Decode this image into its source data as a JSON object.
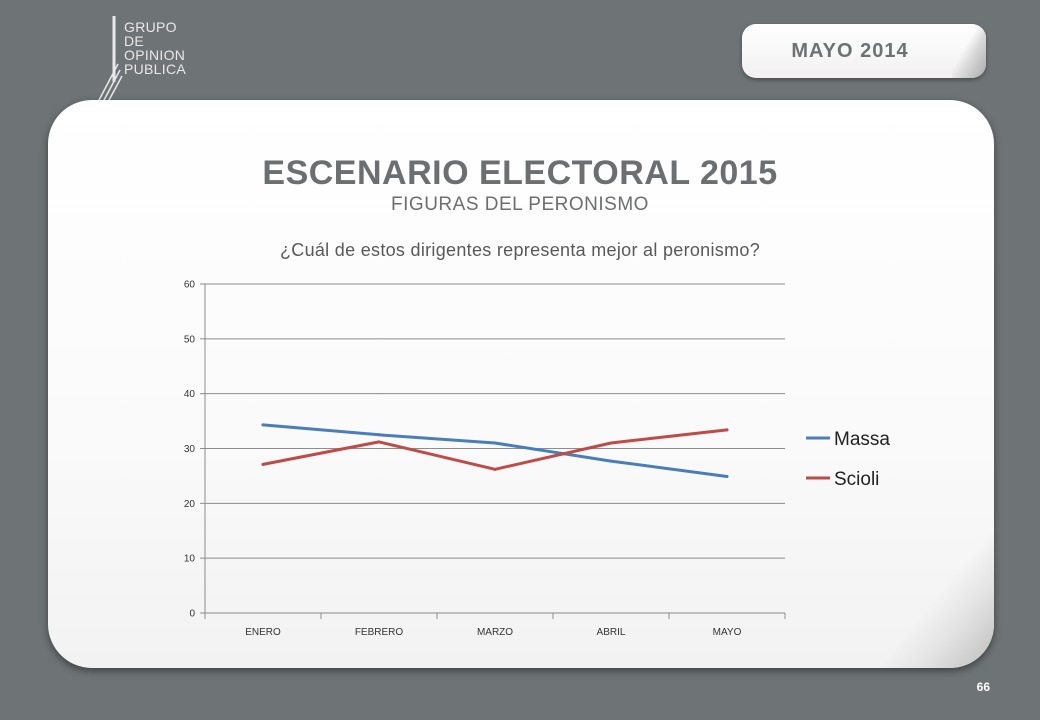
{
  "logo": {
    "lines": [
      "GRUPO",
      "DE",
      "OPINION",
      "PUBLICA"
    ]
  },
  "header": {
    "date_label": "MAYO  2014"
  },
  "slide": {
    "title": "ESCENARIO ELECTORAL 2015",
    "subtitle": "FIGURAS DEL PERONISMO",
    "question": "¿Cuál de estos dirigentes representa mejor al peronismo?"
  },
  "chart_data": {
    "type": "line",
    "title": "",
    "xlabel": "",
    "ylabel": "",
    "categories": [
      "ENERO",
      "FEBRERO",
      "MARZO",
      "ABRIL",
      "MAYO"
    ],
    "ylim": [
      0,
      60
    ],
    "yticks": [
      "0",
      "10",
      "20",
      "30",
      "40",
      "50",
      "60"
    ],
    "grid": true,
    "legend_position": "right",
    "series": [
      {
        "name": "Massa",
        "values": [
          34.3,
          32.5,
          31.0,
          27.7,
          24.9
        ],
        "color": "#4a7ebb"
      },
      {
        "name": "Scioli",
        "values": [
          27.1,
          31.2,
          26.2,
          31.0,
          33.4
        ],
        "color": "#be4b48"
      }
    ]
  },
  "footer": {
    "page_number": "66"
  }
}
